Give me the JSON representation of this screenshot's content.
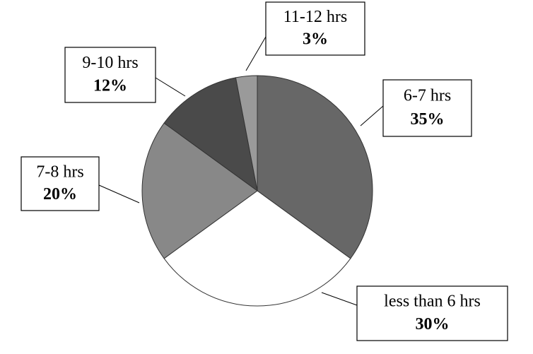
{
  "chart_data": {
    "type": "pie",
    "categories": [
      "6-7 hrs",
      "less than 6 hrs",
      "7-8 hrs",
      "9-10 hrs",
      "11-12 hrs"
    ],
    "values": [
      35,
      30,
      20,
      12,
      3
    ],
    "value_labels": [
      "35%",
      "30%",
      "20%",
      "12%",
      "3%"
    ],
    "colors": [
      "#676767",
      "#ffffff",
      "#888888",
      "#4a4a4a",
      "#9a9a9a"
    ]
  }
}
